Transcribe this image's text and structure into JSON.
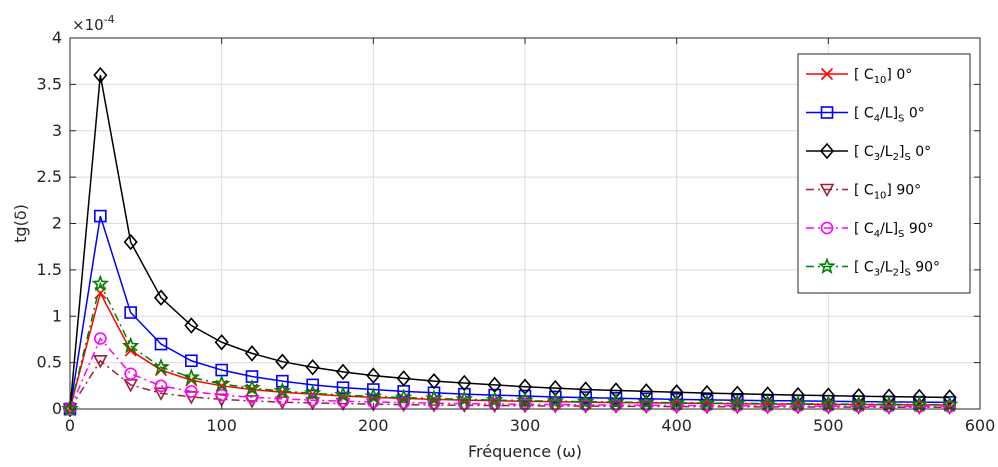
{
  "chart_data": {
    "type": "line",
    "xlabel": "Fréquence (ω)",
    "ylabel": "tg(δ)",
    "y_exponent_label": "× 10⁻⁴",
    "y_exponent_base": "×10",
    "y_exponent_power": "-4",
    "xlim": [
      0,
      600
    ],
    "ylim": [
      0,
      4
    ],
    "y_scale_factor": 0.0001,
    "x_ticks": [
      "0",
      "100",
      "200",
      "300",
      "400",
      "500",
      "600"
    ],
    "y_ticks": [
      "0",
      "0.5",
      "1",
      "1.5",
      "2",
      "2.5",
      "3",
      "3.5",
      "4"
    ],
    "grid": true,
    "legend_position": "top-right",
    "x": [
      0,
      20,
      40,
      60,
      80,
      100,
      120,
      140,
      160,
      180,
      200,
      220,
      240,
      260,
      280,
      300,
      320,
      340,
      360,
      380,
      400,
      420,
      440,
      460,
      480,
      500,
      520,
      540,
      560,
      580
    ],
    "series": [
      {
        "name": "[ C10] 0°",
        "name_parts": [
          "[ C",
          "10",
          "] 0°",
          "",
          ""
        ],
        "color": "#ff0000",
        "marker": "x",
        "dash": "solid",
        "values": [
          0,
          1.25,
          0.63,
          0.42,
          0.31,
          0.25,
          0.21,
          0.18,
          0.16,
          0.14,
          0.125,
          0.114,
          0.104,
          0.096,
          0.089,
          0.083,
          0.078,
          0.074,
          0.069,
          0.066,
          0.063,
          0.06,
          0.057,
          0.054,
          0.052,
          0.05,
          0.048,
          0.046,
          0.045,
          0.043
        ]
      },
      {
        "name": "[ C4/L]S 0°",
        "name_parts": [
          "[ C",
          "4",
          "/L]",
          "S",
          " 0°"
        ],
        "color": "#0000ff",
        "marker": "square",
        "dash": "solid",
        "values": [
          0,
          2.08,
          1.04,
          0.7,
          0.52,
          0.42,
          0.35,
          0.3,
          0.26,
          0.23,
          0.21,
          0.19,
          0.175,
          0.16,
          0.15,
          0.14,
          0.13,
          0.123,
          0.116,
          0.11,
          0.104,
          0.099,
          0.095,
          0.09,
          0.087,
          0.083,
          0.08,
          0.077,
          0.074,
          0.072
        ]
      },
      {
        "name": "[ C3/L2]S 0°",
        "name_parts": [
          "[ C",
          "3",
          "/L",
          "2",
          "]",
          "S",
          " 0°"
        ],
        "color": "#000000",
        "marker": "diamond",
        "dash": "solid",
        "values": [
          0,
          3.6,
          1.8,
          1.2,
          0.9,
          0.72,
          0.6,
          0.51,
          0.45,
          0.4,
          0.36,
          0.33,
          0.3,
          0.28,
          0.26,
          0.24,
          0.225,
          0.21,
          0.2,
          0.19,
          0.18,
          0.171,
          0.164,
          0.157,
          0.15,
          0.144,
          0.138,
          0.133,
          0.129,
          0.124
        ]
      },
      {
        "name": "[ C10] 90°",
        "name_parts": [
          "[ C",
          "10",
          "] 90°",
          "",
          ""
        ],
        "color": "#a0203c",
        "marker": "triangle-down",
        "dash": "dashdot",
        "values": [
          0,
          0.52,
          0.26,
          0.17,
          0.13,
          0.104,
          0.087,
          0.074,
          0.065,
          0.058,
          0.052,
          0.047,
          0.043,
          0.04,
          0.037,
          0.035,
          0.033,
          0.031,
          0.029,
          0.027,
          0.026,
          0.025,
          0.024,
          0.023,
          0.022,
          0.021,
          0.02,
          0.019,
          0.019,
          0.018
        ]
      },
      {
        "name": "[ C4/L]S 90°",
        "name_parts": [
          "[ C",
          "4",
          "/L]",
          "S",
          " 90°"
        ],
        "color": "#ff00ff",
        "marker": "circle",
        "dash": "dashdot",
        "values": [
          0,
          0.76,
          0.38,
          0.25,
          0.19,
          0.15,
          0.127,
          0.109,
          0.095,
          0.084,
          0.076,
          0.069,
          0.063,
          0.058,
          0.054,
          0.051,
          0.048,
          0.045,
          0.042,
          0.04,
          0.038,
          0.036,
          0.035,
          0.033,
          0.032,
          0.03,
          0.029,
          0.028,
          0.027,
          0.026
        ]
      },
      {
        "name": "[ C3/L2]S 90°",
        "name_parts": [
          "[ C",
          "3",
          "/L",
          "2",
          "]",
          "S",
          " 90°"
        ],
        "color": "#008000",
        "marker": "star",
        "dash": "dashdot",
        "values": [
          0,
          1.35,
          0.68,
          0.45,
          0.34,
          0.27,
          0.225,
          0.193,
          0.169,
          0.15,
          0.135,
          0.123,
          0.113,
          0.104,
          0.096,
          0.09,
          0.084,
          0.079,
          0.075,
          0.071,
          0.068,
          0.064,
          0.061,
          0.059,
          0.056,
          0.054,
          0.052,
          0.05,
          0.048,
          0.047
        ]
      }
    ]
  }
}
